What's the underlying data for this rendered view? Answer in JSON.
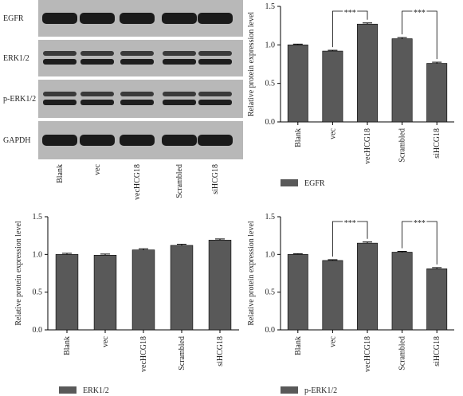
{
  "blot": {
    "rows": [
      "EGFR",
      "ERK1/2",
      "p-ERK1/2",
      "GAPDH"
    ],
    "lanes": [
      "Blank",
      "vec",
      "vecHCG18",
      "Scrambled",
      "siHCG18"
    ]
  },
  "chart_data": [
    {
      "type": "bar",
      "ylabel": "Relative protein expression level",
      "categories": [
        "Blank",
        "vec",
        "vecHCG18",
        "Scrambled",
        "siHCG18"
      ],
      "series": [
        {
          "name": "EGFR",
          "color": "#595959",
          "values": [
            1.0,
            0.92,
            1.27,
            1.08,
            0.76
          ],
          "errors": [
            0.01,
            0.01,
            0.015,
            0.015,
            0.015
          ]
        }
      ],
      "ylim": [
        0,
        1.5
      ],
      "yticks": [
        {
          "value": 0,
          "label": "0.0"
        },
        {
          "value": 0.5,
          "label": "0.5"
        },
        {
          "value": 1,
          "label": "1.0"
        },
        {
          "value": 1.5,
          "label": "1.5"
        }
      ],
      "annotations": [
        {
          "text": "***",
          "between": [
            "vec",
            "vecHCG18"
          ]
        },
        {
          "text": "***",
          "between": [
            "Scrambled",
            "siHCG18"
          ]
        }
      ]
    },
    {
      "type": "bar",
      "ylabel": "Relative protein expression level",
      "categories": [
        "Blank",
        "vec",
        "vecHCG18",
        "Scrambled",
        "siHCG18"
      ],
      "series": [
        {
          "name": "ERK1/2",
          "color": "#595959",
          "values": [
            1.0,
            0.99,
            1.06,
            1.12,
            1.19
          ],
          "errors": [
            0.015,
            0.015,
            0.015,
            0.015,
            0.015
          ]
        }
      ],
      "ylim": [
        0,
        1.5
      ],
      "yticks": [
        {
          "value": 0,
          "label": "0.0"
        },
        {
          "value": 0.5,
          "label": "0.5"
        },
        {
          "value": 1,
          "label": "1.0"
        },
        {
          "value": 1.5,
          "label": "1.5"
        }
      ],
      "annotations": []
    },
    {
      "type": "bar",
      "ylabel": "Relative protein expression level",
      "categories": [
        "Blank",
        "vec",
        "vecHCG18",
        "Scrambled",
        "siHCG18"
      ],
      "series": [
        {
          "name": "p-ERK1/2",
          "color": "#595959",
          "values": [
            1.0,
            0.92,
            1.15,
            1.03,
            0.81
          ],
          "errors": [
            0.01,
            0.01,
            0.015,
            0.01,
            0.015
          ]
        }
      ],
      "ylim": [
        0,
        1.5
      ],
      "yticks": [
        {
          "value": 0,
          "label": "0.0"
        },
        {
          "value": 0.5,
          "label": "0.5"
        },
        {
          "value": 1,
          "label": "1.0"
        },
        {
          "value": 1.5,
          "label": "1.5"
        }
      ],
      "annotations": [
        {
          "text": "***",
          "between": [
            "vec",
            "vecHCG18"
          ]
        },
        {
          "text": "***",
          "between": [
            "Scrambled",
            "siHCG18"
          ]
        }
      ]
    }
  ]
}
